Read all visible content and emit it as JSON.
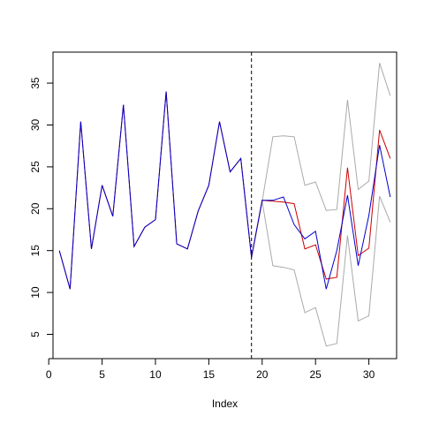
{
  "chart_data": {
    "type": "line",
    "title": "",
    "xlabel": "Index",
    "ylabel": "",
    "xlim": [
      0.4,
      32.6
    ],
    "ylim": [
      2.1,
      38.7
    ],
    "xticks": [
      0,
      5,
      10,
      15,
      20,
      25,
      30
    ],
    "yticks": [
      5,
      10,
      15,
      20,
      25,
      30,
      35
    ],
    "grid": false,
    "legend": "none",
    "vline": {
      "x": 19,
      "style": "dashed",
      "color": "#000000"
    },
    "series": [
      {
        "color": "#cc0000",
        "x": [
          1,
          2,
          3,
          4,
          5,
          6,
          7,
          8,
          9,
          10,
          11,
          12,
          13,
          14,
          15,
          16,
          17,
          18,
          19,
          20,
          21,
          22,
          23,
          24,
          25,
          26,
          27,
          28,
          29,
          30,
          31,
          32
        ],
        "y": [
          15,
          10.4,
          30.4,
          15.2,
          22.8,
          19.1,
          32.4,
          15.5,
          17.8,
          18.7,
          34.0,
          15.8,
          15.2,
          19.7,
          22.8,
          30.4,
          24.4,
          26.0,
          14.2,
          21.0,
          20.9,
          20.8,
          20.6,
          15.2,
          15.7,
          11.6,
          11.8,
          24.9,
          14.4,
          15.3,
          29.4,
          26.0
        ]
      },
      {
        "color": "#0000cc",
        "x": [
          1,
          2,
          3,
          4,
          5,
          6,
          7,
          8,
          9,
          10,
          11,
          12,
          13,
          14,
          15,
          16,
          17,
          18,
          19,
          20,
          21,
          22,
          23,
          24,
          25,
          26,
          27,
          28,
          29,
          30,
          31,
          32
        ],
        "y": [
          15,
          10.4,
          30.4,
          15.2,
          22.8,
          19.1,
          32.4,
          15.5,
          17.8,
          18.7,
          34.0,
          15.8,
          15.2,
          19.7,
          22.8,
          30.4,
          24.4,
          26.0,
          14.2,
          21.0,
          21.0,
          21.4,
          18.1,
          16.4,
          17.3,
          10.4,
          15.0,
          21.6,
          13.2,
          19.2,
          27.6,
          21.4
        ]
      },
      {
        "color": "#aaaaaa",
        "x": [
          19,
          20,
          21,
          22,
          23,
          24,
          25,
          26,
          27,
          28,
          29,
          30,
          31,
          32
        ],
        "y": [
          14.2,
          20.9,
          28.6,
          28.7,
          28.6,
          22.8,
          23.2,
          19.8,
          19.9,
          33.0,
          22.3,
          23.3,
          37.4,
          33.5
        ]
      },
      {
        "color": "#aaaaaa",
        "x": [
          19,
          20,
          21,
          22,
          23,
          24,
          25,
          26,
          27,
          28,
          29,
          30,
          31,
          32
        ],
        "y": [
          14.2,
          20.9,
          13.2,
          13.0,
          12.7,
          7.6,
          8.2,
          3.6,
          3.9,
          16.8,
          6.6,
          7.2,
          21.5,
          18.4
        ]
      }
    ]
  }
}
